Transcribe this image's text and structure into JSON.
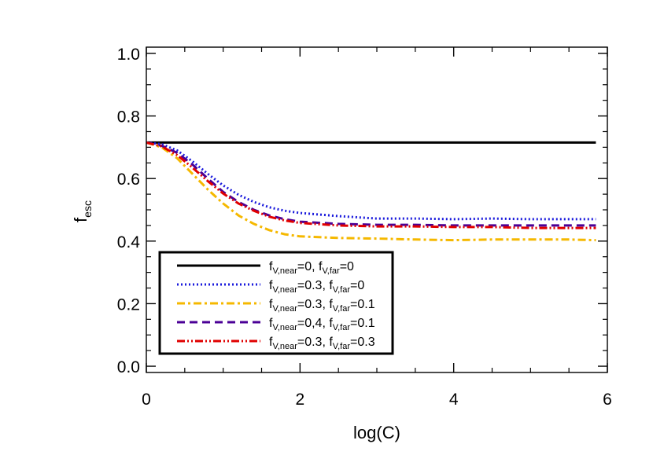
{
  "chart_data": {
    "type": "line",
    "xlabel": "log(C)",
    "ylabel": {
      "main": "f",
      "sub": "esc"
    },
    "xlim": [
      0,
      6
    ],
    "ylim": [
      -0.02,
      1.02
    ],
    "xticks": [
      0,
      2,
      4,
      6
    ],
    "xtick_labels": [
      "0",
      "2",
      "4",
      "6"
    ],
    "yticks": [
      0.0,
      0.2,
      0.4,
      0.6,
      0.8,
      1.0
    ],
    "ytick_labels": [
      "0.0",
      "0.2",
      "0.4",
      "0.6",
      "0.8",
      "1.0"
    ],
    "grid": false,
    "legend_position": "lower-left",
    "series": [
      {
        "name": "f_V,near=0, f_V,far=0",
        "legend": [
          [
            "f",
            ""
          ],
          [
            "V,near",
            "sub"
          ],
          [
            "=0, ",
            ""
          ],
          [
            "f",
            ""
          ],
          [
            "V,far",
            "sub"
          ],
          [
            "=0",
            ""
          ]
        ],
        "color": "#000000",
        "dash": "solid",
        "x": [
          0,
          0.5,
          1,
          2,
          3,
          4,
          5,
          5.85
        ],
        "y": [
          0.715,
          0.715,
          0.715,
          0.715,
          0.715,
          0.715,
          0.715,
          0.715
        ]
      },
      {
        "name": "f_V,near=0.3, f_V,far=0",
        "legend": [
          [
            "f",
            ""
          ],
          [
            "V,near",
            "sub"
          ],
          [
            "=0.3, ",
            ""
          ],
          [
            "f",
            ""
          ],
          [
            "V,far",
            "sub"
          ],
          [
            "=0",
            ""
          ]
        ],
        "color": "#1a1adc",
        "dash": "dotted",
        "x": [
          0,
          0.2,
          0.4,
          0.6,
          0.8,
          1.0,
          1.2,
          1.4,
          1.6,
          1.8,
          2.0,
          2.5,
          3.0,
          3.5,
          4.0,
          4.5,
          5.0,
          5.5,
          5.85
        ],
        "y": [
          0.715,
          0.71,
          0.69,
          0.655,
          0.615,
          0.578,
          0.548,
          0.525,
          0.508,
          0.497,
          0.49,
          0.48,
          0.472,
          0.472,
          0.47,
          0.472,
          0.47,
          0.47,
          0.47
        ]
      },
      {
        "name": "f_V,near=0.3, f_V,far=0.1",
        "legend": [
          [
            "f",
            ""
          ],
          [
            "V,near",
            "sub"
          ],
          [
            "=0.3, ",
            ""
          ],
          [
            "f",
            ""
          ],
          [
            "V,far",
            "sub"
          ],
          [
            "=0.1",
            ""
          ]
        ],
        "color": "#f5b800",
        "dash": "dashdot",
        "x": [
          0,
          0.2,
          0.4,
          0.6,
          0.8,
          1.0,
          1.2,
          1.4,
          1.6,
          1.8,
          2.0,
          2.5,
          3.0,
          3.5,
          4.0,
          4.5,
          5.0,
          5.5,
          5.85
        ],
        "y": [
          0.715,
          0.7,
          0.665,
          0.615,
          0.565,
          0.52,
          0.482,
          0.455,
          0.435,
          0.422,
          0.415,
          0.41,
          0.408,
          0.405,
          0.403,
          0.405,
          0.405,
          0.405,
          0.403
        ]
      },
      {
        "name": "f_V,near=0,4, f_V,far=0.1",
        "legend": [
          [
            "f",
            ""
          ],
          [
            "V,near",
            "sub"
          ],
          [
            "=0,4, ",
            ""
          ],
          [
            "f",
            ""
          ],
          [
            "V,far",
            "sub"
          ],
          [
            "=0.1",
            ""
          ]
        ],
        "color": "#4b0096",
        "dash": "dashed",
        "x": [
          0,
          0.2,
          0.4,
          0.6,
          0.8,
          1.0,
          1.2,
          1.4,
          1.6,
          1.8,
          2.0,
          2.5,
          3.0,
          3.5,
          4.0,
          4.5,
          5.0,
          5.5,
          5.85
        ],
        "y": [
          0.715,
          0.705,
          0.682,
          0.645,
          0.6,
          0.557,
          0.525,
          0.5,
          0.482,
          0.47,
          0.462,
          0.455,
          0.452,
          0.452,
          0.45,
          0.45,
          0.45,
          0.45,
          0.45
        ]
      },
      {
        "name": "f_V,near=0.3, f_V,far=0.3",
        "legend": [
          [
            "f",
            ""
          ],
          [
            "V,near",
            "sub"
          ],
          [
            "=0.3, ",
            ""
          ],
          [
            "f",
            ""
          ],
          [
            "V,far",
            "sub"
          ],
          [
            "=0.3",
            ""
          ]
        ],
        "color": "#e00000",
        "dash": "dashdotdot",
        "x": [
          0,
          0.2,
          0.4,
          0.6,
          0.8,
          1.0,
          1.2,
          1.4,
          1.6,
          1.8,
          2.0,
          2.5,
          3.0,
          3.5,
          4.0,
          4.5,
          5.0,
          5.5,
          5.85
        ],
        "y": [
          0.715,
          0.703,
          0.675,
          0.635,
          0.592,
          0.552,
          0.52,
          0.497,
          0.478,
          0.466,
          0.458,
          0.45,
          0.447,
          0.447,
          0.445,
          0.445,
          0.442,
          0.442,
          0.442
        ]
      }
    ]
  }
}
